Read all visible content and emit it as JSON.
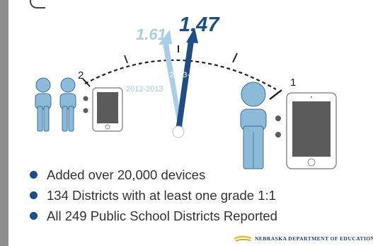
{
  "gauge": {
    "value_2012_2013": "1.61",
    "value_2013_2014": "1.47",
    "label_2012_2013": "2012-2013",
    "label_2013_2014": "2013-2014",
    "scale_left": "2",
    "scale_right": "1"
  },
  "bullets": [
    "Added over 20,000 devices",
    "134 Districts with at least one grade 1:1",
    "All 249 Public School Districts Reported"
  ],
  "footer": {
    "org": "NEBRASKA DEPARTMENT OF EDUCATION"
  },
  "colors": {
    "light_blue": "#a9cfe8",
    "dark_blue": "#1f4e86",
    "figure_blue": "#8bbbd9",
    "device_gray": "#5b5b5b"
  }
}
